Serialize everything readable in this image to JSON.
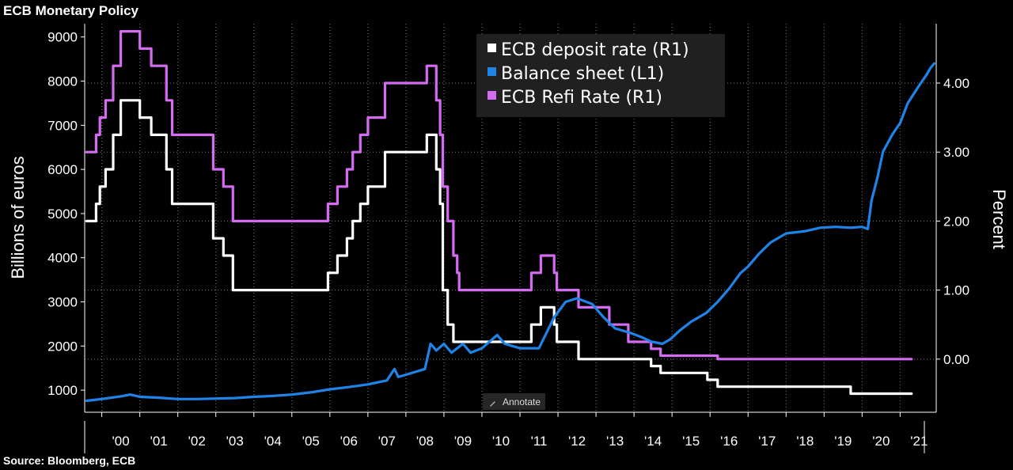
{
  "title": "ECB Monetary Policy",
  "source": "Source: Bloomberg, ECB",
  "annotate_label": "Annotate",
  "annotate_icon": "pencil-icon",
  "colors": {
    "background": "#000000",
    "deposit": "#ffffff",
    "balance": "#1f83e8",
    "refi": "#d36cf0",
    "grid": "#7a7a7a"
  },
  "chart_data": {
    "type": "line",
    "ylabel_left": "Billions of euros",
    "ylabel_right": "Percent",
    "ylim_left": [
      500,
      9300
    ],
    "ylim_right": [
      -0.77,
      4.86
    ],
    "yticks_left": [
      1000,
      2000,
      3000,
      4000,
      5000,
      6000,
      7000,
      8000,
      9000
    ],
    "yticks_right": [
      "0.00",
      "1.00",
      "2.00",
      "3.00",
      "4.00"
    ],
    "xlim": [
      1999.55,
      2021.95
    ],
    "xtick_labels": [
      "'00",
      "'01",
      "'02",
      "'03",
      "'04",
      "'05",
      "'06",
      "'07",
      "'08",
      "'09",
      "'10",
      "'11",
      "'12",
      "'13",
      "'14",
      "'15",
      "'16",
      "'17",
      "'18",
      "'19",
      "'20",
      "'21"
    ],
    "grid": true,
    "legend_position": "top-center",
    "series": [
      {
        "name": "ECB deposit rate (R1)",
        "axis": "right",
        "step": true,
        "points": [
          [
            1999.6,
            2.0
          ],
          [
            1999.85,
            2.25
          ],
          [
            1999.95,
            2.5
          ],
          [
            2000.1,
            2.75
          ],
          [
            2000.3,
            3.25
          ],
          [
            2000.5,
            3.75
          ],
          [
            2000.75,
            3.75
          ],
          [
            2001.0,
            3.5
          ],
          [
            2001.3,
            3.25
          ],
          [
            2001.7,
            2.75
          ],
          [
            2001.85,
            2.25
          ],
          [
            2002.0,
            2.25
          ],
          [
            2002.93,
            1.75
          ],
          [
            2003.2,
            1.5
          ],
          [
            2003.45,
            1.0
          ],
          [
            2005.95,
            1.25
          ],
          [
            2006.2,
            1.5
          ],
          [
            2006.45,
            1.75
          ],
          [
            2006.6,
            2.0
          ],
          [
            2006.8,
            2.25
          ],
          [
            2007.0,
            2.5
          ],
          [
            2007.45,
            3.0
          ],
          [
            2008.55,
            3.25
          ],
          [
            2008.8,
            2.75
          ],
          [
            2008.9,
            2.25
          ],
          [
            2008.97,
            1.0
          ],
          [
            2009.1,
            0.5
          ],
          [
            2009.25,
            0.25
          ],
          [
            2011.3,
            0.5
          ],
          [
            2011.55,
            0.75
          ],
          [
            2011.9,
            0.5
          ],
          [
            2011.97,
            0.25
          ],
          [
            2012.54,
            0.0
          ],
          [
            2014.45,
            -0.1
          ],
          [
            2014.7,
            -0.2
          ],
          [
            2015.93,
            -0.3
          ],
          [
            2016.2,
            -0.4
          ],
          [
            2019.7,
            -0.5
          ],
          [
            2021.3,
            -0.5
          ]
        ]
      },
      {
        "name": "Balance sheet (L1)",
        "axis": "left",
        "step": false,
        "points": [
          [
            1999.6,
            760
          ],
          [
            2000.0,
            800
          ],
          [
            2000.5,
            860
          ],
          [
            2000.75,
            900
          ],
          [
            2001.0,
            850
          ],
          [
            2001.5,
            830
          ],
          [
            2002.0,
            800
          ],
          [
            2002.5,
            800
          ],
          [
            2003.0,
            810
          ],
          [
            2003.5,
            820
          ],
          [
            2004.0,
            850
          ],
          [
            2004.5,
            870
          ],
          [
            2005.0,
            900
          ],
          [
            2005.5,
            950
          ],
          [
            2006.0,
            1020
          ],
          [
            2006.5,
            1070
          ],
          [
            2007.0,
            1130
          ],
          [
            2007.5,
            1220
          ],
          [
            2007.7,
            1480
          ],
          [
            2007.8,
            1300
          ],
          [
            2008.0,
            1350
          ],
          [
            2008.5,
            1480
          ],
          [
            2008.65,
            2050
          ],
          [
            2008.8,
            1900
          ],
          [
            2009.0,
            2050
          ],
          [
            2009.2,
            1850
          ],
          [
            2009.5,
            2050
          ],
          [
            2009.7,
            1850
          ],
          [
            2010.0,
            1950
          ],
          [
            2010.4,
            2250
          ],
          [
            2010.6,
            2050
          ],
          [
            2010.8,
            2000
          ],
          [
            2011.0,
            1950
          ],
          [
            2011.5,
            1950
          ],
          [
            2011.9,
            2650
          ],
          [
            2012.2,
            3000
          ],
          [
            2012.5,
            3080
          ],
          [
            2012.9,
            2950
          ],
          [
            2013.2,
            2650
          ],
          [
            2013.5,
            2400
          ],
          [
            2013.9,
            2300
          ],
          [
            2014.2,
            2200
          ],
          [
            2014.45,
            2100
          ],
          [
            2014.75,
            2050
          ],
          [
            2014.95,
            2150
          ],
          [
            2015.2,
            2350
          ],
          [
            2015.5,
            2550
          ],
          [
            2015.9,
            2750
          ],
          [
            2016.2,
            3000
          ],
          [
            2016.5,
            3300
          ],
          [
            2016.8,
            3650
          ],
          [
            2017.0,
            3800
          ],
          [
            2017.3,
            4100
          ],
          [
            2017.6,
            4350
          ],
          [
            2017.8,
            4450
          ],
          [
            2018.0,
            4550
          ],
          [
            2018.5,
            4600
          ],
          [
            2018.9,
            4680
          ],
          [
            2019.3,
            4700
          ],
          [
            2019.7,
            4680
          ],
          [
            2020.0,
            4700
          ],
          [
            2020.15,
            4650
          ],
          [
            2020.25,
            5300
          ],
          [
            2020.4,
            5800
          ],
          [
            2020.55,
            6400
          ],
          [
            2020.8,
            6800
          ],
          [
            2021.0,
            7050
          ],
          [
            2021.2,
            7500
          ],
          [
            2021.5,
            7900
          ],
          [
            2021.7,
            8150
          ],
          [
            2021.8,
            8300
          ],
          [
            2021.9,
            8400
          ]
        ]
      },
      {
        "name": "ECB Refi Rate (R1)",
        "axis": "right",
        "step": true,
        "points": [
          [
            1999.6,
            3.0
          ],
          [
            1999.85,
            3.25
          ],
          [
            1999.95,
            3.5
          ],
          [
            2000.1,
            3.75
          ],
          [
            2000.3,
            4.25
          ],
          [
            2000.5,
            4.75
          ],
          [
            2000.75,
            4.75
          ],
          [
            2001.0,
            4.5
          ],
          [
            2001.3,
            4.25
          ],
          [
            2001.7,
            3.75
          ],
          [
            2001.85,
            3.25
          ],
          [
            2002.0,
            3.25
          ],
          [
            2002.93,
            2.75
          ],
          [
            2003.2,
            2.5
          ],
          [
            2003.45,
            2.0
          ],
          [
            2005.95,
            2.25
          ],
          [
            2006.2,
            2.5
          ],
          [
            2006.45,
            2.75
          ],
          [
            2006.6,
            3.0
          ],
          [
            2006.8,
            3.25
          ],
          [
            2007.0,
            3.5
          ],
          [
            2007.45,
            4.0
          ],
          [
            2008.55,
            4.25
          ],
          [
            2008.8,
            3.75
          ],
          [
            2008.9,
            3.25
          ],
          [
            2008.97,
            2.5
          ],
          [
            2009.1,
            2.0
          ],
          [
            2009.25,
            1.5
          ],
          [
            2009.35,
            1.25
          ],
          [
            2009.4,
            1.0
          ],
          [
            2011.3,
            1.25
          ],
          [
            2011.55,
            1.5
          ],
          [
            2011.9,
            1.25
          ],
          [
            2011.97,
            1.0
          ],
          [
            2012.54,
            0.75
          ],
          [
            2013.35,
            0.5
          ],
          [
            2013.85,
            0.25
          ],
          [
            2014.45,
            0.15
          ],
          [
            2014.7,
            0.05
          ],
          [
            2016.2,
            0.0
          ],
          [
            2021.3,
            0.0
          ]
        ]
      }
    ]
  }
}
